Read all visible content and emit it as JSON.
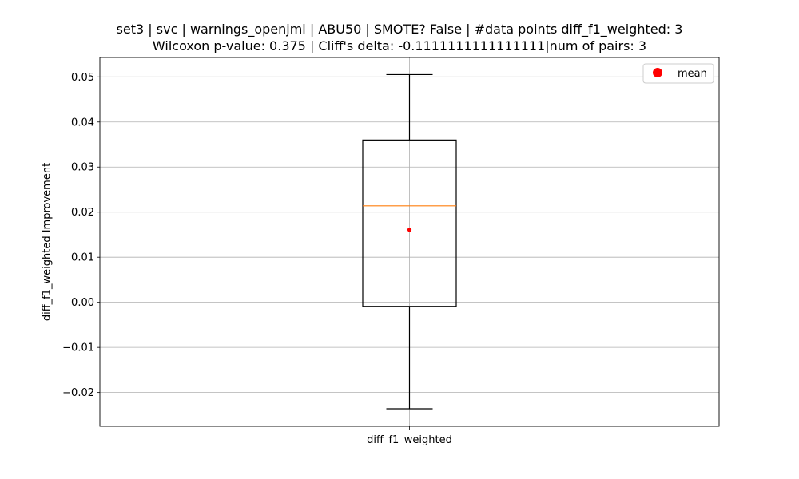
{
  "chart_data": {
    "type": "box",
    "title_lines": [
      "set3 | svc | warnings_openjml | ABU50 | SMOTE? False | #data points diff_f1_weighted: 3",
      "Wilcoxon p-value: 0.375 | Cliff's delta: -0.1111111111111111|num of pairs: 3"
    ],
    "xlabel": "",
    "ylabel": "diff_f1_weighted Improvement",
    "categories": [
      "diff_f1_weighted"
    ],
    "ylim": [
      -0.0275,
      0.0543
    ],
    "yticks": [
      -0.02,
      -0.01,
      0.0,
      0.01,
      0.02,
      0.03,
      0.04,
      0.05
    ],
    "ytick_labels": [
      "−0.02",
      "−0.01",
      "0.00",
      "0.01",
      "0.02",
      "0.03",
      "0.04",
      "0.05"
    ],
    "box": {
      "whisker_low": -0.0236,
      "q1": -0.0009,
      "median": 0.0214,
      "q3": 0.036,
      "whisker_high": 0.0505,
      "mean": 0.0161
    },
    "grid": true,
    "legend": {
      "position": "top-right",
      "entries": [
        "mean"
      ]
    },
    "colors": {
      "median": "#ff7f0e",
      "mean": "#ff0000",
      "box": "#000000",
      "grid": "#b0b0b0"
    }
  }
}
